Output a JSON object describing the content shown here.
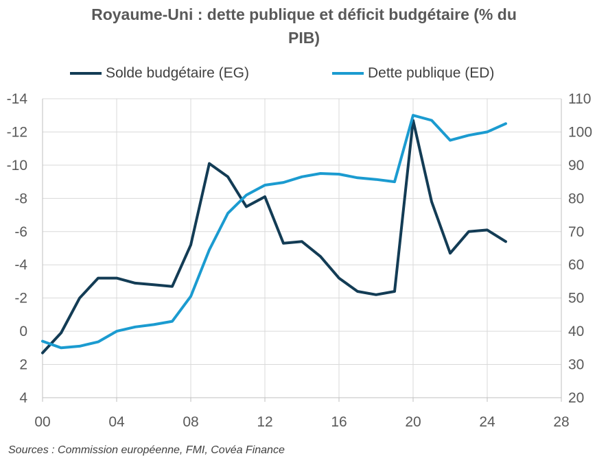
{
  "title_line1": "Royaume-Uni : dette publique et déficit budgétaire (% du",
  "title_line2": "PIB)",
  "source": "Sources : Commission européenne, FMI, Covéa Finance",
  "colors": {
    "solde": "#133c55",
    "dette": "#1b9bd0",
    "grid": "#d9d9d9",
    "axis_text": "#595959"
  },
  "chart_data": {
    "type": "line",
    "title": "Royaume-Uni : dette publique et déficit budgétaire (% du PIB)",
    "x_axis": {
      "min": 0,
      "max": 28,
      "ticks": [
        0,
        4,
        8,
        12,
        16,
        20,
        24,
        28
      ],
      "tick_labels": [
        "00",
        "04",
        "08",
        "12",
        "16",
        "20",
        "24",
        "28"
      ]
    },
    "y_left": {
      "min": 4,
      "max": -14,
      "inverted": true,
      "ticks": [
        -14,
        -12,
        -10,
        -8,
        -6,
        -4,
        -2,
        0,
        2,
        4
      ],
      "tick_labels": [
        "-14",
        "-12",
        "-10",
        "-8",
        "-6",
        "-4",
        "-2",
        "0",
        "2",
        "4"
      ]
    },
    "y_right": {
      "min": 20,
      "max": 110,
      "ticks": [
        110,
        100,
        90,
        80,
        70,
        60,
        50,
        40,
        30,
        20
      ],
      "tick_labels": [
        "110",
        "100",
        "90",
        "80",
        "70",
        "60",
        "50",
        "40",
        "30",
        "20"
      ]
    },
    "grid": true,
    "legend_position": "top",
    "series": [
      {
        "name": "Solde budgétaire (EG)",
        "axis": "left",
        "x": [
          0,
          1,
          2,
          3,
          4,
          5,
          6,
          7,
          8,
          9,
          10,
          11,
          12,
          13,
          14,
          15,
          16,
          17,
          18,
          19,
          20,
          21,
          22,
          23,
          24,
          25
        ],
        "values": [
          1.3,
          0.1,
          -2.0,
          -3.2,
          -3.2,
          -2.9,
          -2.8,
          -2.7,
          -5.2,
          -10.1,
          -9.3,
          -7.5,
          -8.1,
          -5.3,
          -5.4,
          -4.5,
          -3.2,
          -2.4,
          -2.2,
          -2.4,
          -12.7,
          -7.8,
          -4.7,
          -6.0,
          -6.1,
          -5.4
        ]
      },
      {
        "name": "Dette publique (ED)",
        "axis": "right",
        "x": [
          0,
          1,
          2,
          3,
          4,
          5,
          6,
          7,
          8,
          9,
          10,
          11,
          12,
          13,
          14,
          15,
          16,
          17,
          18,
          19,
          20,
          21,
          22,
          23,
          24,
          25
        ],
        "values": [
          37.0,
          35.0,
          35.5,
          36.8,
          40.0,
          41.3,
          42.0,
          43.0,
          50.5,
          64.5,
          75.5,
          81.0,
          84.0,
          84.8,
          86.5,
          87.5,
          87.3,
          86.2,
          85.7,
          85.0,
          105.0,
          103.5,
          97.5,
          99.0,
          100.0,
          102.5
        ]
      }
    ]
  }
}
